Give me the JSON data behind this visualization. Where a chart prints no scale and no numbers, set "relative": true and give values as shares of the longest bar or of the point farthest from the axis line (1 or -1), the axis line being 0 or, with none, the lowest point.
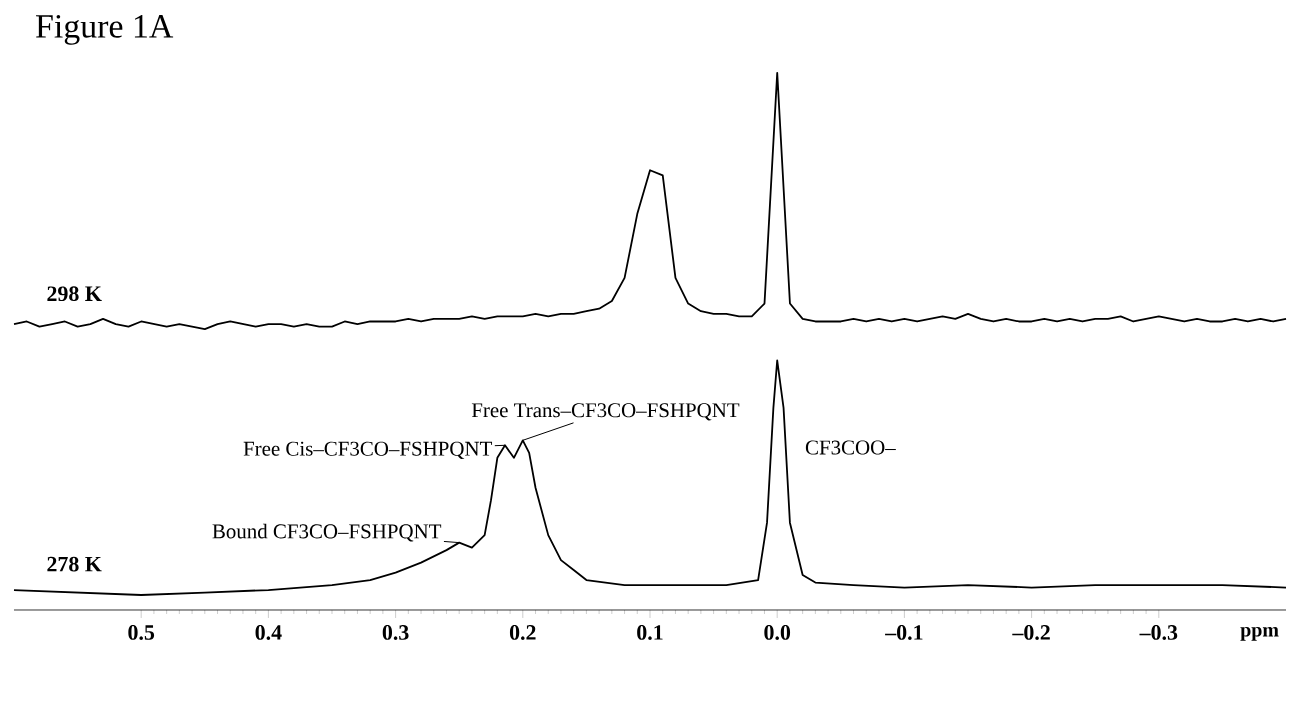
{
  "chart_data": [
    {
      "type": "line",
      "title": "Figure 1A",
      "relative": true,
      "tick_labels": false,
      "categories": [
        null,
        null,
        null,
        null,
        null,
        null,
        null,
        null,
        null,
        null,
        null,
        null,
        null,
        null,
        null,
        null,
        null,
        null,
        null,
        null,
        null,
        null,
        null,
        null,
        null,
        null,
        null,
        null,
        null,
        null,
        null,
        null,
        null,
        null,
        null,
        null,
        null,
        null,
        null,
        null,
        null,
        null,
        null,
        null,
        null,
        null,
        null,
        null,
        null,
        null,
        null,
        null,
        null,
        null,
        null,
        null,
        null,
        null,
        null,
        null,
        null,
        null,
        null,
        null,
        null,
        null,
        null,
        null,
        null,
        null,
        null,
        null,
        null,
        null,
        null,
        null,
        null,
        null,
        null,
        null,
        null,
        null,
        null,
        null,
        null,
        null,
        null,
        null,
        null,
        null,
        null,
        null,
        null,
        null,
        null,
        null,
        null,
        null,
        null,
        null,
        null
      ],
      "series": [
        {
          "name": "298 K",
          "color": "#000000",
          "values": [
            0.02,
            0.03,
            0.01,
            0.02,
            0.03,
            0.01,
            0.02,
            0.04,
            0.02,
            0.01,
            0.03,
            0.02,
            0.01,
            0.02,
            0.01,
            0.0,
            0.02,
            0.03,
            0.02,
            0.01,
            0.02,
            0.02,
            0.01,
            0.02,
            0.01,
            0.01,
            0.03,
            0.02,
            0.03,
            0.03,
            0.03,
            0.04,
            0.03,
            0.04,
            0.04,
            0.04,
            0.05,
            0.04,
            0.05,
            0.05,
            0.05,
            0.06,
            0.05,
            0.06,
            0.06,
            0.07,
            0.08,
            0.11,
            0.2,
            0.45,
            0.62,
            0.6,
            0.2,
            0.1,
            0.07,
            0.06,
            0.06,
            0.05,
            0.05,
            0.1,
            1.0,
            0.1,
            0.04,
            0.03,
            0.03,
            0.03,
            0.04,
            0.03,
            0.04,
            0.03,
            0.04,
            0.03,
            0.04,
            0.05,
            0.04,
            0.06,
            0.04,
            0.03,
            0.04,
            0.03,
            0.03,
            0.04,
            0.03,
            0.04,
            0.03,
            0.04,
            0.04,
            0.05,
            0.03,
            0.04,
            0.05,
            0.04,
            0.03,
            0.04,
            0.03,
            0.03,
            0.04,
            0.03,
            0.04,
            0.03,
            0.04
          ]
        }
      ]
    },
    {
      "type": "line",
      "relative": true,
      "xlim": [
        0.6,
        -0.4
      ],
      "tick_labels": "x",
      "xlabel": "ppm",
      "xticks": [
        0.5,
        0.4,
        0.3,
        0.2,
        0.1,
        {
          "value": 0,
          "label": "0.0"
        },
        {
          "value": -0.1,
          "label": "–0.1"
        },
        {
          "value": -0.2,
          "label": "–0.2"
        },
        {
          "value": -0.3,
          "label": "–0.3"
        }
      ],
      "series": [
        {
          "name": "278 K",
          "color": "#000000",
          "x": [
            0.6,
            0.55,
            0.5,
            0.45,
            0.4,
            0.35,
            0.32,
            0.3,
            0.28,
            0.26,
            0.25,
            0.24,
            0.23,
            0.225,
            0.22,
            0.214,
            0.207,
            0.2,
            0.195,
            0.19,
            0.18,
            0.17,
            0.16,
            0.15,
            0.12,
            0.08,
            0.04,
            0.015,
            0.008,
            0.003,
            0.0,
            -0.005,
            -0.01,
            -0.02,
            -0.03,
            -0.06,
            -0.1,
            -0.15,
            -0.2,
            -0.25,
            -0.3,
            -0.35,
            -0.4
          ],
          "values": [
            0.08,
            0.07,
            0.06,
            0.07,
            0.08,
            0.1,
            0.12,
            0.15,
            0.19,
            0.24,
            0.27,
            0.25,
            0.3,
            0.44,
            0.61,
            0.66,
            0.61,
            0.68,
            0.63,
            0.49,
            0.3,
            0.2,
            0.16,
            0.12,
            0.1,
            0.1,
            0.1,
            0.12,
            0.35,
            0.81,
            1.0,
            0.81,
            0.35,
            0.14,
            0.11,
            0.1,
            0.09,
            0.1,
            0.09,
            0.1,
            0.1,
            0.1,
            0.09
          ]
        }
      ],
      "annotations": [
        {
          "text": "Free Cis–CF3CO–FSHPQNT",
          "x": 0.214,
          "y": 0.66
        },
        {
          "text": "Free Trans–CF3CO–FSHPQNT",
          "x": 0.2,
          "y": 0.68
        },
        {
          "text": "Bound CF3CO–FSHPQNT",
          "x": 0.25,
          "y": 0.27
        },
        "CF3COO–"
      ]
    }
  ]
}
